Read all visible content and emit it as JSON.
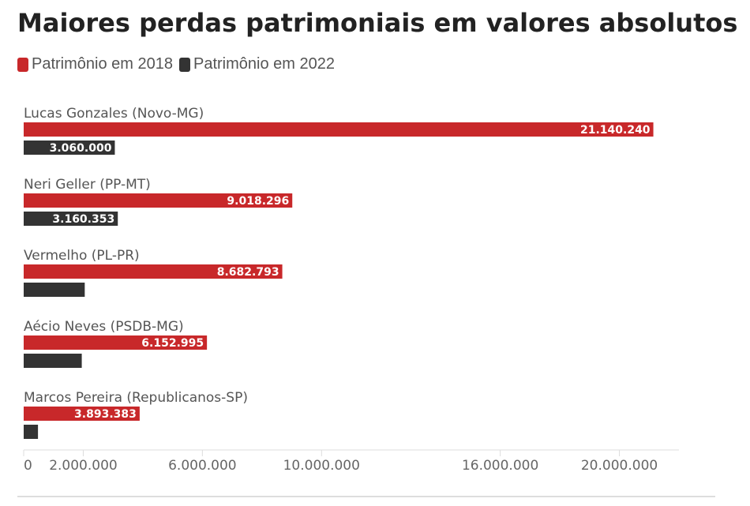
{
  "chart_data": {
    "type": "bar",
    "orientation": "horizontal",
    "title": "Maiores perdas patrimoniais em valores absolutos",
    "categories": [
      "Lucas Gonzales (Novo-MG)",
      "Neri Geller (PP-MT)",
      "Vermelho (PL-PR)",
      "Aécio Neves (PSDB-MG)",
      "Marcos Pereira (Republicanos-SP)"
    ],
    "series": [
      {
        "name": "Patrimônio em 2018",
        "color": "#c8282a",
        "values": [
          21140240,
          9018296,
          8682793,
          6152995,
          3893383
        ],
        "labels": [
          "21.140.240",
          "9.018.296",
          "8.682.793",
          "6.152.995",
          "3.893.383"
        ]
      },
      {
        "name": "Patrimônio em 2022",
        "color": "#333333",
        "values": [
          3060000,
          3160353,
          2050000,
          1950000,
          480000
        ],
        "labels": [
          "3.060.000",
          "3.160.353",
          "",
          "",
          ""
        ]
      }
    ],
    "xlim": [
      0,
      22000000
    ],
    "xticks": [
      0,
      2000000,
      6000000,
      10000000,
      16000000,
      20000000
    ],
    "xtick_labels": [
      "0",
      "2.000.000",
      "6.000.000",
      "10.000.000",
      "16.000.000",
      "20.000.000"
    ],
    "grid": false,
    "legend_position": "top-left"
  }
}
